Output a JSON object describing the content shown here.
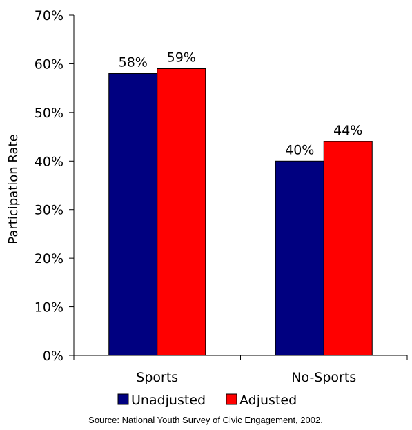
{
  "chart_data": {
    "type": "bar",
    "categories": [
      "Sports",
      "No-Sports"
    ],
    "series": [
      {
        "name": "Unadjusted",
        "values": [
          58,
          40
        ],
        "labels": [
          "58%",
          "40%"
        ],
        "color": "#000080"
      },
      {
        "name": "Adjusted",
        "values": [
          59,
          44
        ],
        "labels": [
          "59%",
          "44%"
        ],
        "color": "#FF0000"
      }
    ],
    "ylabel": "Participation Rate",
    "ylim": [
      0,
      70
    ],
    "yticks": [
      0,
      10,
      20,
      30,
      40,
      50,
      60,
      70
    ],
    "ytick_labels": [
      "0%",
      "10%",
      "20%",
      "30%",
      "40%",
      "50%",
      "60%",
      "70%"
    ],
    "grid": false,
    "legend": "bottom",
    "source": "Source:  National Youth Survey of Civic Engagement, 2002."
  }
}
